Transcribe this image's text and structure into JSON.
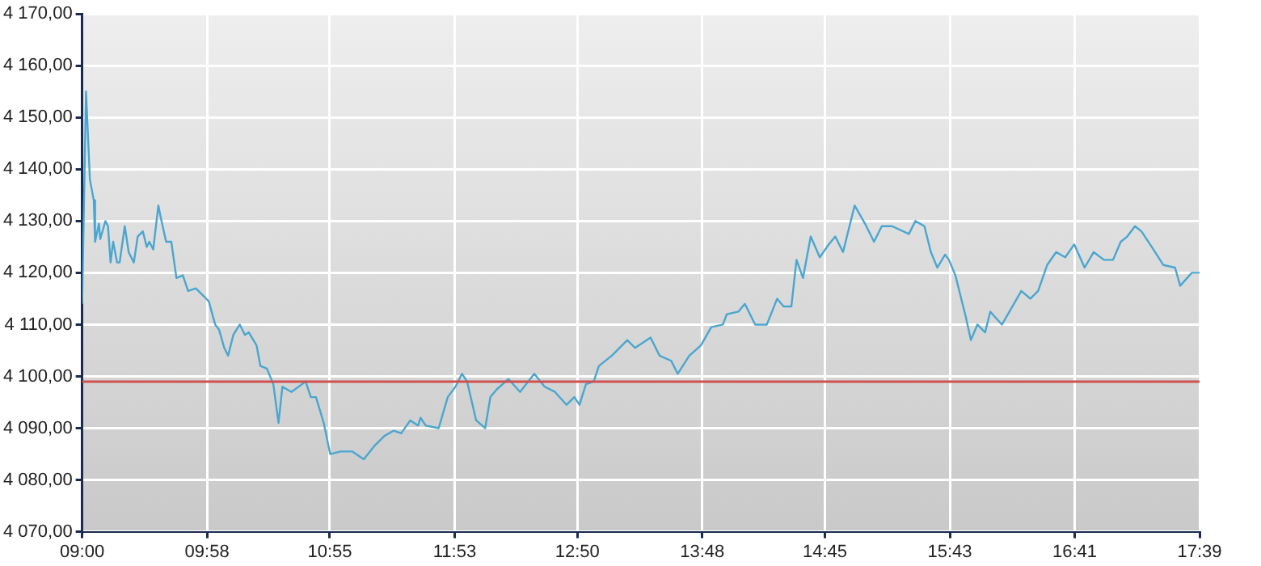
{
  "chart_data": {
    "type": "line",
    "x": [
      9.0,
      9.03,
      9.06,
      9.09,
      9.1,
      9.13,
      9.14,
      9.18,
      9.2,
      9.22,
      9.24,
      9.27,
      9.29,
      9.33,
      9.36,
      9.4,
      9.43,
      9.47,
      9.5,
      9.52,
      9.55,
      9.59,
      9.61,
      9.65,
      9.69,
      9.73,
      9.78,
      9.82,
      9.88,
      9.94,
      9.98,
      10.03,
      10.06,
      10.1,
      10.13,
      10.17,
      10.22,
      10.26,
      10.29,
      10.35,
      10.38,
      10.43,
      10.48,
      10.52,
      10.55,
      10.62,
      10.73,
      10.77,
      10.81,
      10.87,
      10.92,
      11.0,
      11.09,
      11.18,
      11.26,
      11.34,
      11.41,
      11.47,
      11.54,
      11.6,
      11.62,
      11.66,
      11.76,
      11.83,
      11.89,
      11.94,
      11.98,
      12.05,
      12.12,
      12.16,
      12.21,
      12.3,
      12.39,
      12.5,
      12.58,
      12.66,
      12.75,
      12.81,
      12.85,
      12.9,
      12.96,
      13.0,
      13.1,
      13.22,
      13.28,
      13.4,
      13.47,
      13.56,
      13.61,
      13.7,
      13.79,
      13.87,
      13.96,
      13.99,
      14.08,
      14.13,
      14.21,
      14.3,
      14.38,
      14.43,
      14.49,
      14.53,
      14.58,
      14.64,
      14.71,
      14.78,
      14.83,
      14.89,
      14.98,
      15.06,
      15.13,
      15.19,
      15.27,
      15.4,
      15.45,
      15.52,
      15.57,
      15.62,
      15.68,
      15.71,
      15.76,
      15.84,
      15.88,
      15.93,
      15.99,
      16.03,
      16.12,
      16.19,
      16.27,
      16.34,
      16.4,
      16.47,
      16.54,
      16.61,
      16.68,
      16.76,
      16.83,
      16.91,
      16.98,
      17.04,
      17.09,
      17.15,
      17.2,
      17.28,
      17.37,
      17.46,
      17.5,
      17.59,
      17.65
    ],
    "series": [
      {
        "color": "#4aa6cf",
        "values": [
          4114,
          4155,
          4138,
          4134,
          4126,
          4129.5,
          4126.5,
          4130,
          4129,
          4122,
          4126,
          4122,
          4122,
          4129,
          4124,
          4122,
          4127,
          4128,
          4125,
          4126,
          4124.5,
          4133,
          4130.5,
          4126,
          4126,
          4119,
          4119.5,
          4116.5,
          4117,
          4115.5,
          4114.5,
          4110,
          4109,
          4105.5,
          4104,
          4108,
          4110,
          4108,
          4108.5,
          4106,
          4102,
          4101.5,
          4098.5,
          4091,
          4098,
          4097,
          4099,
          4096,
          4096,
          4091,
          4085,
          4085.5,
          4085.5,
          4084,
          4086.5,
          4088.5,
          4089.5,
          4089,
          4091.5,
          4090.5,
          4092,
          4090.5,
          4090,
          4096,
          4098,
          4100.5,
          4099,
          4091.5,
          4090,
          4096,
          4097.5,
          4099.5,
          4097,
          4100.5,
          4098,
          4097,
          4094.5,
          4096,
          4094.5,
          4098.5,
          4099,
          4102,
          4104,
          4107,
          4105.5,
          4107.5,
          4104,
          4103,
          4100.5,
          4104,
          4106,
          4109.5,
          4110,
          4112,
          4112.5,
          4114,
          4110,
          4110,
          4115,
          4113.5,
          4113.5,
          4122.5,
          4119,
          4127,
          4123,
          4125.5,
          4127,
          4124,
          4133,
          4129.5,
          4126,
          4129,
          4129,
          4127.5,
          4130,
          4129,
          4124,
          4121,
          4123.5,
          4122.5,
          4119.5,
          4111.5,
          4107,
          4110,
          4108.5,
          4112.5,
          4110,
          4113,
          4116.5,
          4115,
          4116.5,
          4121.5,
          4124,
          4123,
          4125.5,
          4121,
          4124,
          4122.5,
          4122.5,
          4126,
          4127,
          4129,
          4128,
          4125,
          4121.5,
          4121,
          4117.5,
          4120,
          4120
        ]
      }
    ],
    "xlim": [
      9.0,
      17.65
    ],
    "xticks": [
      {
        "value": 9.0,
        "label": "09:00"
      },
      {
        "value": 9.9667,
        "label": "09:58"
      },
      {
        "value": 10.9167,
        "label": "10:55"
      },
      {
        "value": 11.8833,
        "label": "11:53"
      },
      {
        "value": 12.8333,
        "label": "12:50"
      },
      {
        "value": 13.8,
        "label": "13:48"
      },
      {
        "value": 14.75,
        "label": "14:45"
      },
      {
        "value": 15.7167,
        "label": "15:43"
      },
      {
        "value": 16.6833,
        "label": "16:41"
      },
      {
        "value": 17.65,
        "label": "17:39"
      }
    ],
    "ylim": [
      4070,
      4170
    ],
    "yticks": [
      {
        "value": 4070,
        "label": "4 070,00"
      },
      {
        "value": 4080,
        "label": "4 080,00"
      },
      {
        "value": 4090,
        "label": "4 090,00"
      },
      {
        "value": 4100,
        "label": "4 100,00"
      },
      {
        "value": 4110,
        "label": "4 110,00"
      },
      {
        "value": 4120,
        "label": "4 120,00"
      },
      {
        "value": 4130,
        "label": "4 130,00"
      },
      {
        "value": 4140,
        "label": "4 140,00"
      },
      {
        "value": 4150,
        "label": "4 150,00"
      },
      {
        "value": 4160,
        "label": "4 160,00"
      },
      {
        "value": 4170,
        "label": "4 170,00"
      }
    ],
    "ref_lines": [
      {
        "axis": "y",
        "value": 4099,
        "color": "#d05050"
      }
    ],
    "grid": true,
    "marker": "none"
  }
}
